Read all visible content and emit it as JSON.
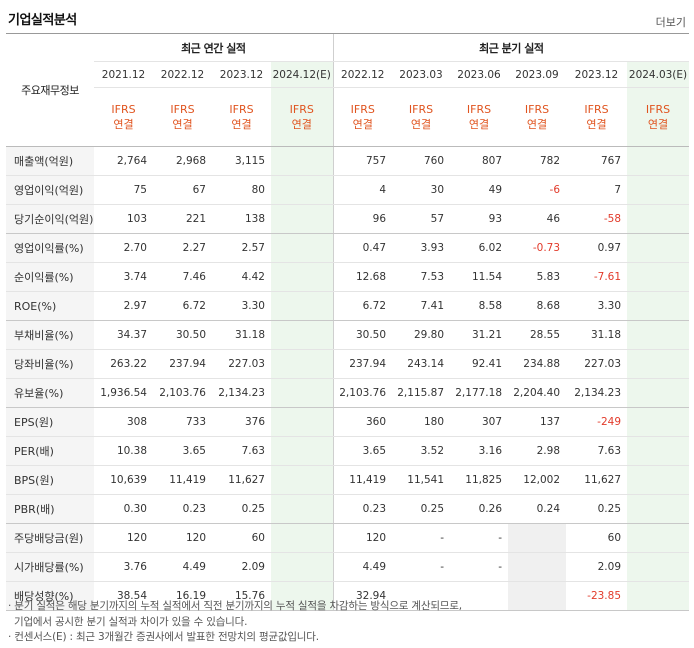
{
  "section": {
    "title": "기업실적분석",
    "more_label": "더보기"
  },
  "table": {
    "row_header_label": "주요재무정보",
    "annual_group": "최근 연간 실적",
    "quarter_group": "최근 분기 실적",
    "periods": [
      "2021.12",
      "2022.12",
      "2023.12",
      "2024.12(E)",
      "2022.12",
      "2023.03",
      "2023.06",
      "2023.09",
      "2023.12",
      "2024.03(E)"
    ],
    "basis_top": "IFRS",
    "basis_bottom": "연결",
    "rows": [
      {
        "label": "매출액(억원)",
        "values": [
          "2,764",
          "2,968",
          "3,115",
          "",
          "757",
          "760",
          "807",
          "782",
          "767",
          ""
        ]
      },
      {
        "label": "영업이익(억원)",
        "values": [
          "75",
          "67",
          "80",
          "",
          "4",
          "30",
          "49",
          "-6",
          "7",
          ""
        ]
      },
      {
        "label": "당기순이익(억원)",
        "values": [
          "103",
          "221",
          "138",
          "",
          "96",
          "57",
          "93",
          "46",
          "-58",
          ""
        ]
      },
      {
        "label": "영업이익률(%)",
        "values": [
          "2.70",
          "2.27",
          "2.57",
          "",
          "0.47",
          "3.93",
          "6.02",
          "-0.73",
          "0.97",
          ""
        ]
      },
      {
        "label": "순이익률(%)",
        "values": [
          "3.74",
          "7.46",
          "4.42",
          "",
          "12.68",
          "7.53",
          "11.54",
          "5.83",
          "-7.61",
          ""
        ]
      },
      {
        "label": "ROE(%)",
        "values": [
          "2.97",
          "6.72",
          "3.30",
          "",
          "6.72",
          "7.41",
          "8.58",
          "8.68",
          "3.30",
          ""
        ]
      },
      {
        "label": "부채비율(%)",
        "values": [
          "34.37",
          "30.50",
          "31.18",
          "",
          "30.50",
          "29.80",
          "31.21",
          "28.55",
          "31.18",
          ""
        ]
      },
      {
        "label": "당좌비율(%)",
        "values": [
          "263.22",
          "237.94",
          "227.03",
          "",
          "237.94",
          "243.14",
          "92.41",
          "234.88",
          "227.03",
          ""
        ]
      },
      {
        "label": "유보율(%)",
        "values": [
          "1,936.54",
          "2,103.76",
          "2,134.23",
          "",
          "2,103.76",
          "2,115.87",
          "2,177.18",
          "2,204.40",
          "2,134.23",
          ""
        ]
      },
      {
        "label": "EPS(원)",
        "values": [
          "308",
          "733",
          "376",
          "",
          "360",
          "180",
          "307",
          "137",
          "-249",
          ""
        ]
      },
      {
        "label": "PER(배)",
        "values": [
          "10.38",
          "3.65",
          "7.63",
          "",
          "3.65",
          "3.52",
          "3.16",
          "2.98",
          "7.63",
          ""
        ]
      },
      {
        "label": "BPS(원)",
        "values": [
          "10,639",
          "11,419",
          "11,627",
          "",
          "11,419",
          "11,541",
          "11,825",
          "12,002",
          "11,627",
          ""
        ]
      },
      {
        "label": "PBR(배)",
        "values": [
          "0.30",
          "0.23",
          "0.25",
          "",
          "0.23",
          "0.25",
          "0.26",
          "0.24",
          "0.25",
          ""
        ]
      },
      {
        "label": "주당배당금(원)",
        "values": [
          "120",
          "120",
          "60",
          "",
          "120",
          "-",
          "-",
          "",
          "60",
          ""
        ]
      },
      {
        "label": "시가배당률(%)",
        "values": [
          "3.76",
          "4.49",
          "2.09",
          "",
          "4.49",
          "-",
          "-",
          "",
          "2.09",
          ""
        ]
      },
      {
        "label": "배당성향(%)",
        "values": [
          "38.54",
          "16.19",
          "15.76",
          "",
          "32.94",
          "",
          "",
          "",
          "-23.85",
          ""
        ]
      }
    ]
  },
  "notes": [
    "· 분기 실적은 해당 분기까지의 누적 실적에서 직전 분기까지의 누적 실적을 차감하는 방식으로 계산되므로,",
    "  기업에서 공시한 분기 실적과 차이가 있을 수 있습니다.",
    "· 컨센서스(E) : 최근 3개월간 증권사에서 발표한 전망치의 평균값입니다."
  ],
  "colors": {
    "negative": "#e23a2a",
    "ifrs": "#e0541f",
    "estimate_bg": "#edf7ed",
    "label_bg": "#f5f5f5"
  }
}
